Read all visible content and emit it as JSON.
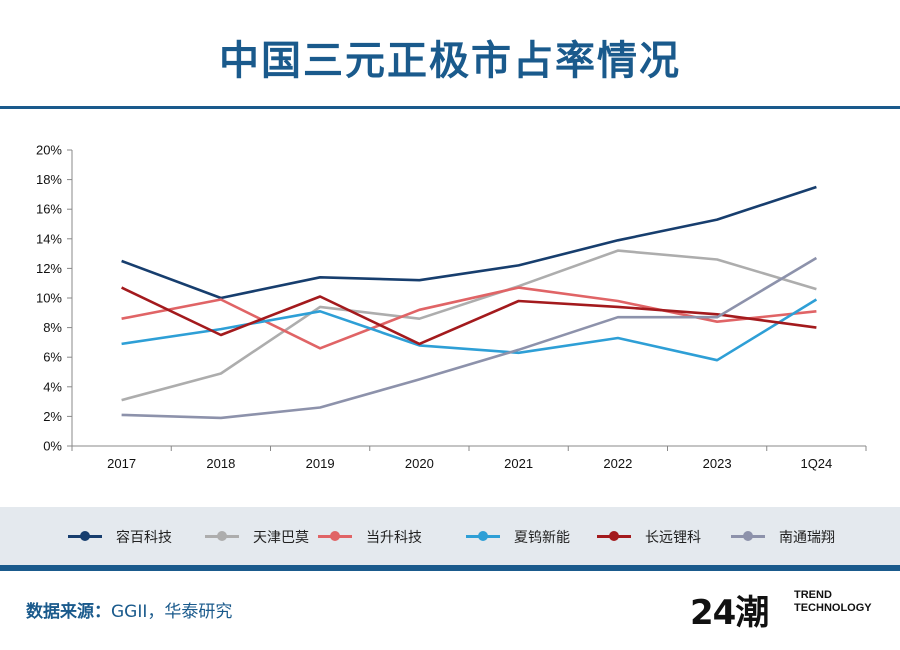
{
  "header": {
    "title": "中国三元正极市占率情况"
  },
  "chart_data": {
    "type": "line",
    "categories": [
      "2017",
      "2018",
      "2019",
      "2020",
      "2021",
      "2022",
      "2023",
      "1Q24"
    ],
    "ylim": [
      0,
      20
    ],
    "yticks": [
      "0%",
      "2%",
      "4%",
      "6%",
      "8%",
      "10%",
      "12%",
      "14%",
      "16%",
      "18%",
      "20%"
    ],
    "grid": false,
    "legend_position": "bottom",
    "series": [
      {
        "name": "容百科技",
        "color": "#173e6e",
        "values": [
          12.5,
          10.0,
          11.4,
          11.2,
          12.2,
          13.9,
          15.3,
          17.5
        ]
      },
      {
        "name": "天津巴莫",
        "color": "#adadad",
        "values": [
          3.1,
          4.9,
          9.4,
          8.6,
          10.8,
          13.2,
          12.6,
          10.6
        ]
      },
      {
        "name": "当升科技",
        "color": "#e06466",
        "values": [
          8.6,
          9.9,
          6.6,
          9.2,
          10.7,
          9.8,
          8.4,
          9.1
        ]
      },
      {
        "name": "夏钨新能",
        "color": "#2e9fd6",
        "values": [
          6.9,
          7.9,
          9.1,
          6.8,
          6.3,
          7.3,
          5.8,
          9.9
        ]
      },
      {
        "name": "长远锂科",
        "color": "#a31a1d",
        "values": [
          10.7,
          7.5,
          10.1,
          6.9,
          9.8,
          9.4,
          8.9,
          8.0
        ]
      },
      {
        "name": "南通瑞翔",
        "color": "#8d92ab",
        "values": [
          2.1,
          1.9,
          2.6,
          4.5,
          6.5,
          8.7,
          8.7,
          12.7
        ]
      }
    ]
  },
  "footer": {
    "source_label": "数据来源：",
    "source_value": "GGII，华泰研究",
    "logo_mark": "24潮",
    "logo_line1": "TREND",
    "logo_line2": "TECHNOLOGY"
  }
}
